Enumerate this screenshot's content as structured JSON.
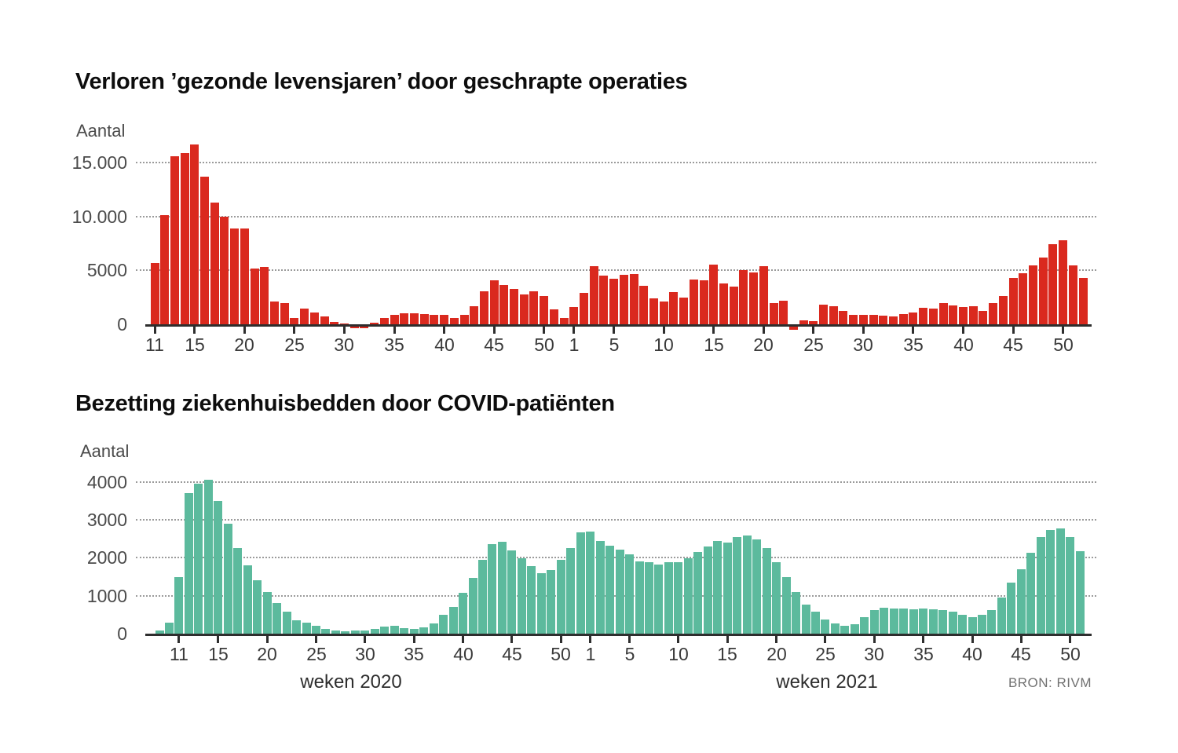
{
  "page": {
    "xlabel_2020": "weken 2020",
    "xlabel_2021": "weken 2021",
    "source_label": "BRON: RIVM"
  },
  "chart_data": [
    {
      "id": "lost-healthy-life-years",
      "type": "bar",
      "title": "Verloren ’gezonde levensjaren’ door geschrapte operaties",
      "ylabel": "Aantal",
      "bar_color": "#da291e",
      "ylim": [
        -400,
        17000
      ],
      "grid": "dotted-horizontal",
      "yticks": [
        {
          "value": 0,
          "label": "0"
        },
        {
          "value": 5000,
          "label": "5000"
        },
        {
          "value": 10000,
          "label": "10.000"
        },
        {
          "value": 15000,
          "label": "15.000"
        }
      ],
      "series": [
        {
          "name": "weken 2020",
          "year": 2020,
          "start_week": 11,
          "xticks": [
            11,
            15,
            20,
            25,
            30,
            35,
            40,
            45,
            50
          ],
          "values": [
            5700,
            10100,
            15600,
            15900,
            16700,
            13700,
            11300,
            10000,
            8900,
            8900,
            5200,
            5300,
            2100,
            2000,
            600,
            1450,
            1100,
            700,
            200,
            100,
            -100,
            -50,
            150,
            600,
            850,
            1000,
            1050,
            950,
            850,
            850,
            600,
            850,
            1700,
            3050,
            4050,
            3650,
            3300,
            2750,
            3050,
            2650,
            1400,
            600
          ]
        },
        {
          "name": "weken 2021",
          "year": 2021,
          "start_week": 1,
          "xticks": [
            1,
            5,
            10,
            15,
            20,
            25,
            30,
            35,
            40,
            45,
            50
          ],
          "values": [
            1600,
            2900,
            5400,
            4500,
            4200,
            4600,
            4650,
            3600,
            2400,
            2100,
            3000,
            2500,
            4150,
            4050,
            5550,
            3800,
            3500,
            5000,
            4800,
            5400,
            1950,
            2200,
            -300,
            400,
            300,
            1800,
            1650,
            1250,
            870,
            910,
            910,
            800,
            720,
            960,
            1100,
            1500,
            1440,
            1970,
            1730,
            1590,
            1660,
            1270,
            2000,
            2600,
            4330,
            4710,
            5430,
            6200,
            7400,
            7760,
            5430,
            4330
          ]
        }
      ]
    },
    {
      "id": "covid-hospital-beds",
      "type": "bar",
      "title": "Bezetting ziekenhuisbedden door COVID-patiënten",
      "ylabel": "Aantal",
      "bar_color": "#5cba9d",
      "ylim": [
        0,
        4300
      ],
      "grid": "dotted-horizontal",
      "yticks": [
        {
          "value": 0,
          "label": "0"
        },
        {
          "value": 1000,
          "label": "1000"
        },
        {
          "value": 2000,
          "label": "2000"
        },
        {
          "value": 3000,
          "label": "3000"
        },
        {
          "value": 4000,
          "label": "4000"
        }
      ],
      "series": [
        {
          "name": "weken 2020",
          "year": 2020,
          "start_week": 9,
          "xticks": [
            11,
            15,
            20,
            25,
            30,
            35,
            40,
            45,
            50
          ],
          "values": [
            80,
            300,
            1500,
            3700,
            3950,
            4050,
            3500,
            2900,
            2250,
            1800,
            1400,
            1100,
            800,
            580,
            350,
            300,
            200,
            120,
            80,
            70,
            80,
            90,
            130,
            180,
            200,
            140,
            120,
            160,
            270,
            500,
            700,
            1070,
            1470,
            1950,
            2350,
            2430,
            2200,
            1980,
            1770,
            1600,
            1670,
            1950,
            2250,
            2670
          ]
        },
        {
          "name": "weken 2021",
          "year": 2021,
          "start_week": 1,
          "xticks": [
            1,
            5,
            10,
            15,
            20,
            25,
            30,
            35,
            40,
            45,
            50
          ],
          "values": [
            2680,
            2450,
            2310,
            2220,
            2090,
            1900,
            1880,
            1830,
            1880,
            1880,
            1990,
            2150,
            2290,
            2450,
            2400,
            2550,
            2580,
            2480,
            2260,
            1880,
            1480,
            1100,
            760,
            570,
            380,
            260,
            210,
            250,
            430,
            620,
            690,
            660,
            660,
            640,
            660,
            640,
            620,
            570,
            500,
            430,
            505,
            630,
            950,
            1350,
            1700,
            2140,
            2550,
            2730,
            2770,
            2550,
            2180
          ]
        }
      ]
    }
  ]
}
